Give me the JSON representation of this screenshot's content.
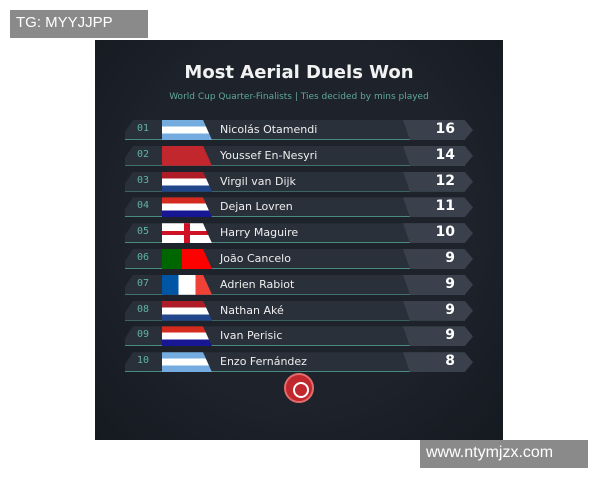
{
  "watermarks": {
    "top": "TG: MYYJJPP",
    "bottom": "www.ntymjzx.com"
  },
  "title": "Most Aerial Duels Won",
  "subtitle": "World Cup Quarter-Finalists | Ties decided by mins played",
  "rows": [
    {
      "rank": "01",
      "name": "Nicolás Otamendi",
      "value": "16",
      "flag": "argentina"
    },
    {
      "rank": "02",
      "name": "Youssef En-Nesyri",
      "value": "14",
      "flag": "morocco"
    },
    {
      "rank": "03",
      "name": "Virgil van Dijk",
      "value": "12",
      "flag": "netherlands"
    },
    {
      "rank": "04",
      "name": "Dejan Lovren",
      "value": "11",
      "flag": "croatia"
    },
    {
      "rank": "05",
      "name": "Harry Maguire",
      "value": "10",
      "flag": "england"
    },
    {
      "rank": "06",
      "name": "João Cancelo",
      "value": "9",
      "flag": "portugal"
    },
    {
      "rank": "07",
      "name": "Adrien Rabiot",
      "value": "9",
      "flag": "france"
    },
    {
      "rank": "08",
      "name": "Nathan Aké",
      "value": "9",
      "flag": "netherlands"
    },
    {
      "rank": "09",
      "name": "Ivan Perisic",
      "value": "9",
      "flag": "croatia"
    },
    {
      "rank": "10",
      "name": "Enzo Fernández",
      "value": "8",
      "flag": "argentina"
    }
  ],
  "colors": {
    "accent": "#5fb3a3",
    "logo": "#c0282d"
  }
}
